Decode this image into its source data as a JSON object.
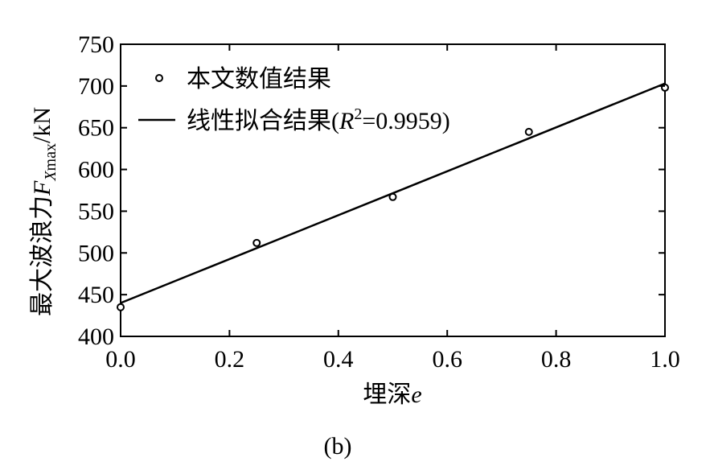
{
  "chart_data": {
    "type": "scatter",
    "panel_label": "(b)",
    "xlabel": {
      "text": "埋深",
      "var": "e"
    },
    "ylabel": {
      "text": "最大波浪力",
      "var": "F",
      "sub": "X",
      "sub2": "max",
      "unit": "/kN"
    },
    "xlim": [
      0.0,
      1.0
    ],
    "ylim": [
      400,
      750
    ],
    "xticks": [
      "0.0",
      "0.2",
      "0.4",
      "0.6",
      "0.8",
      "1.0"
    ],
    "yticks": [
      "400",
      "450",
      "500",
      "550",
      "600",
      "650",
      "700",
      "750"
    ],
    "grid": false,
    "legend_position": "top-left",
    "series": [
      {
        "name": "本文数值结果",
        "kind": "points",
        "x": [
          0.0,
          0.25,
          0.5,
          0.75,
          1.0
        ],
        "y": [
          435,
          512,
          567,
          645,
          698
        ]
      },
      {
        "name": "线性拟合结果",
        "name_suffix": {
          "pre": "(",
          "var": "R",
          "sup": "2",
          "post": "=0.9959)"
        },
        "kind": "line",
        "x": [
          0.0,
          1.0
        ],
        "y": [
          440,
          703
        ]
      }
    ]
  }
}
